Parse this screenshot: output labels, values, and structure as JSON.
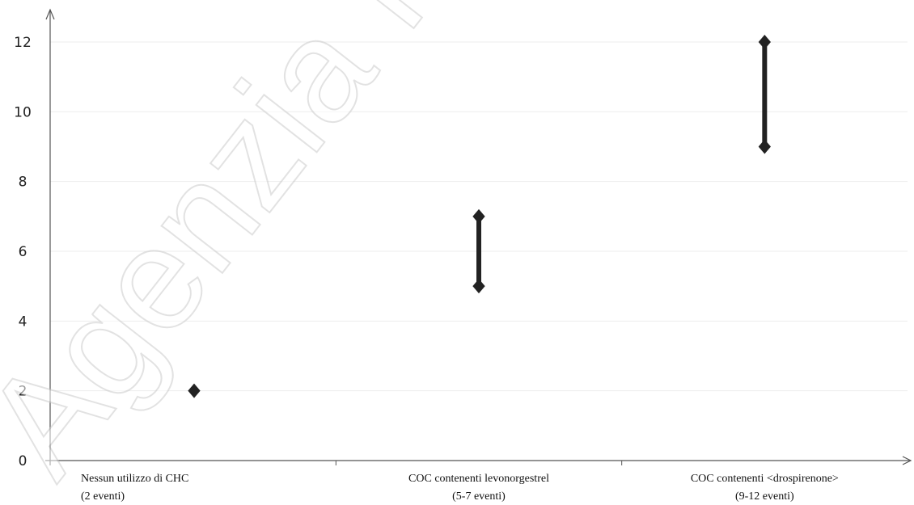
{
  "watermark": "Agenzia Italiana del Farmaco",
  "chart_data": {
    "type": "range",
    "title": "",
    "xlabel": "",
    "ylabel": "",
    "ylim": [
      0,
      12
    ],
    "yticks": [
      0,
      2,
      4,
      6,
      8,
      10,
      12
    ],
    "grid": true,
    "categories": [
      {
        "line1": "Nessun utilizzo di CHC",
        "line2": "(2 eventi)"
      },
      {
        "line1": "COC contenenti levonorgestrel",
        "line2": "(5-7 eventi)"
      },
      {
        "line1": "COC contenenti <drospirenone>",
        "line2": "(9-12 eventi)"
      }
    ],
    "series": [
      {
        "low": 2,
        "high": 2
      },
      {
        "low": 5,
        "high": 7
      },
      {
        "low": 9,
        "high": 12
      }
    ],
    "colors": {
      "marker": "#222222",
      "axis": "#555555",
      "grid": "#ededed"
    }
  }
}
